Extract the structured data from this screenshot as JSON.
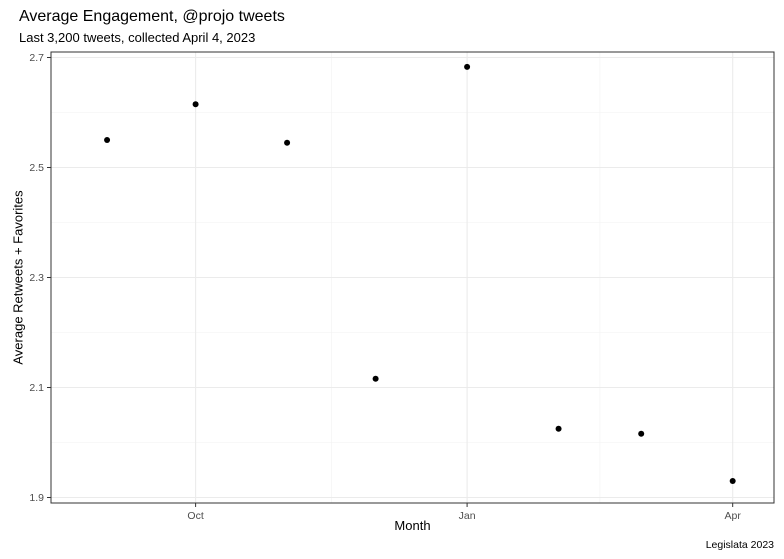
{
  "chart_data": {
    "type": "scatter",
    "title": "Average Engagement, @projo tweets",
    "subtitle": "Last 3,200 tweets, collected April 4, 2023",
    "xlabel": "Month",
    "ylabel": "Average Retweets + Favorites",
    "caption": "Legislata 2023",
    "x_axis_type": "date",
    "xlim": [
      "2022-08-13",
      "2023-04-15"
    ],
    "ylim": [
      1.89,
      2.71
    ],
    "x_ticks": [
      {
        "date": "2022-10-01",
        "label": "Oct"
      },
      {
        "date": "2023-01-01",
        "label": "Jan"
      },
      {
        "date": "2023-04-01",
        "label": "Apr"
      }
    ],
    "y_ticks": [
      1.9,
      2.1,
      2.3,
      2.5,
      2.7
    ],
    "y_tick_labels": [
      "1.9",
      "2.1",
      "2.3",
      "2.5",
      "2.7"
    ],
    "grid": true,
    "points": [
      {
        "x": "2022-09-01",
        "y": 2.55
      },
      {
        "x": "2022-10-01",
        "y": 2.615
      },
      {
        "x": "2022-11-01",
        "y": 2.545
      },
      {
        "x": "2022-12-01",
        "y": 2.116
      },
      {
        "x": "2023-01-01",
        "y": 2.683
      },
      {
        "x": "2023-02-01",
        "y": 2.025
      },
      {
        "x": "2023-03-01",
        "y": 2.016
      },
      {
        "x": "2023-04-01",
        "y": 1.93
      }
    ],
    "point_color": "#000000"
  }
}
